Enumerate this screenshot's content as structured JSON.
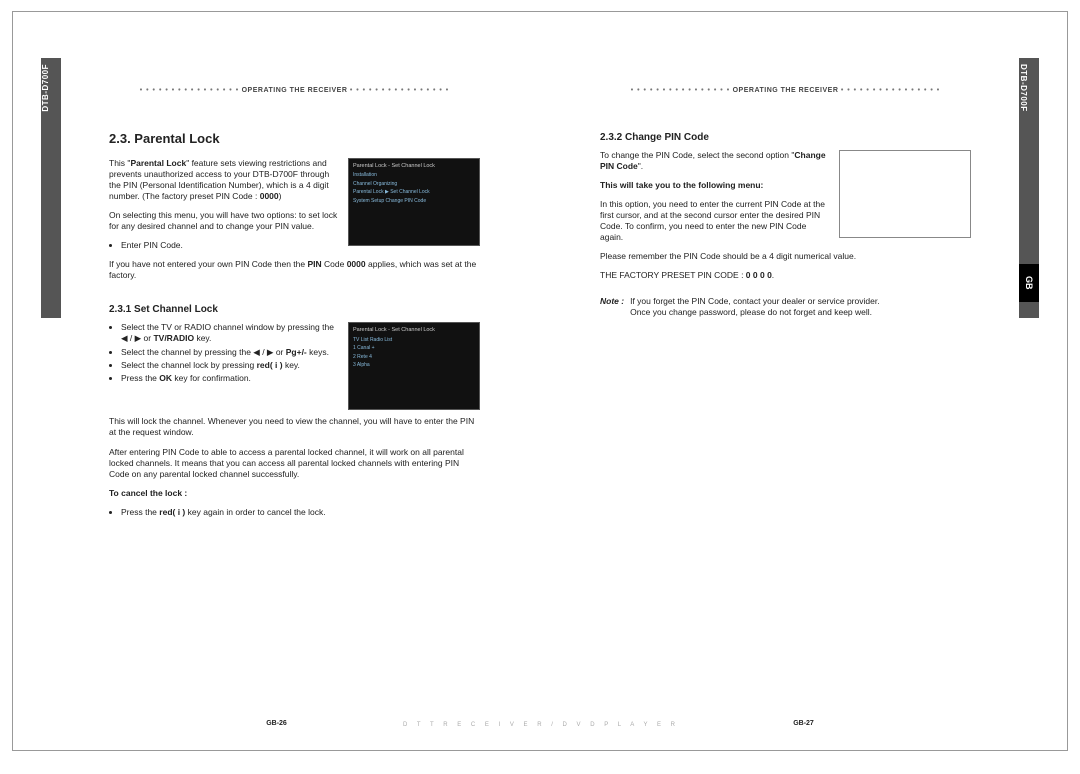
{
  "tabs": {
    "left": "DTB-D700F",
    "right": "DTB-D700F",
    "gb": "GB"
  },
  "header": {
    "text": "OPERATING THE RECEIVER",
    "dots": "• • • • • • • • • • • • • • • •"
  },
  "left_page": {
    "h2": "2.3. Parental Lock",
    "intro1_a": "This \"",
    "intro1_b": "Parental Lock",
    "intro1_c": "\" feature sets viewing restrictions and prevents unauthorized access to your DTB-D700F through the PIN (Personal Identification Number), which is a 4 digit number. (The factory preset PIN Code : ",
    "intro1_d": "0000",
    "intro1_e": ")",
    "intro2": "On selecting this menu, you will have two options: to set lock for any desired channel and to change your PIN value.",
    "bullet_enter": "Enter PIN Code.",
    "intro3_a": "If you have not entered your own PIN Code then the ",
    "intro3_b": "PIN",
    "intro3_c": " Code ",
    "intro3_d": "0000",
    "intro3_e": " applies, which was set at the factory.",
    "h3_1": "2.3.1 Set Channel Lock",
    "sc_b1_a": "Select the TV or RADIO channel window by pressing the ◀ / ▶ or ",
    "sc_b1_b": "TV/RADIO",
    "sc_b1_c": " key.",
    "sc_b2_a": "Select the channel by pressing the ◀ / ▶ or ",
    "sc_b2_b": "Pg+/-",
    "sc_b2_c": " keys.",
    "sc_b3_a": "Select the channel lock by pressing ",
    "sc_b3_b": "red( i )",
    "sc_b3_c": " key.",
    "sc_b4_a": "Press the ",
    "sc_b4_b": "OK",
    "sc_b4_c": " key for confirmation.",
    "sc_p1": "This will lock the channel. Whenever you need to view the channel, you will have to enter the PIN at the request window.",
    "sc_p2": "After entering PIN Code to able to access a parental locked channel, it will work on all parental locked channels. It means that you can access all parental locked channels with entering PIN Code on any parental locked channel successfully.",
    "cancel_h": "To cancel the lock :",
    "cancel_b_a": "Press the ",
    "cancel_b_b": "red( i )",
    "cancel_b_c": " key again in order to cancel the lock.",
    "screenshot1": {
      "title": "Parental Lock - Set Channel Lock",
      "rows": [
        "Installation",
        "Channel Organizing",
        "Parental Lock    ▶ Set Channel Lock",
        "System Setup        Change PIN Code"
      ]
    },
    "screenshot2": {
      "title": "Parental Lock - Set Channel Lock",
      "rows": [
        "TV List          Radio List",
        "1  Canal +",
        "2  Rete 4",
        "3  Alpha"
      ]
    },
    "page_num": "GB-26"
  },
  "right_page": {
    "h3_2": "2.3.2 Change PIN Code",
    "cp_p1": "To change the PIN Code, select the second option \"",
    "cp_p1b": "Change PIN Code",
    "cp_p1c": "\".",
    "cp_bold": "This will take you to the following menu:",
    "cp_p2": "In this option, you need to enter the current PIN Code at the first cursor, and at the second cursor enter the desired PIN Code. To confirm, you need to enter the new PIN Code again.",
    "cp_p3": "Please remember the PIN Code should be a 4 digit numerical value.",
    "cp_p4_a": "THE FACTORY PRESET PIN CODE : ",
    "cp_p4_b": "0 0 0 0",
    "cp_p4_c": ".",
    "note_label": "Note :",
    "note_1": "If you forget the PIN Code, contact your dealer or service provider.",
    "note_2": "Once you change password, please do not forget and keep well.",
    "page_num": "GB-27"
  },
  "footer_mid": "D T T   R E C E I V E R   /   D V D   P L A Y E R"
}
